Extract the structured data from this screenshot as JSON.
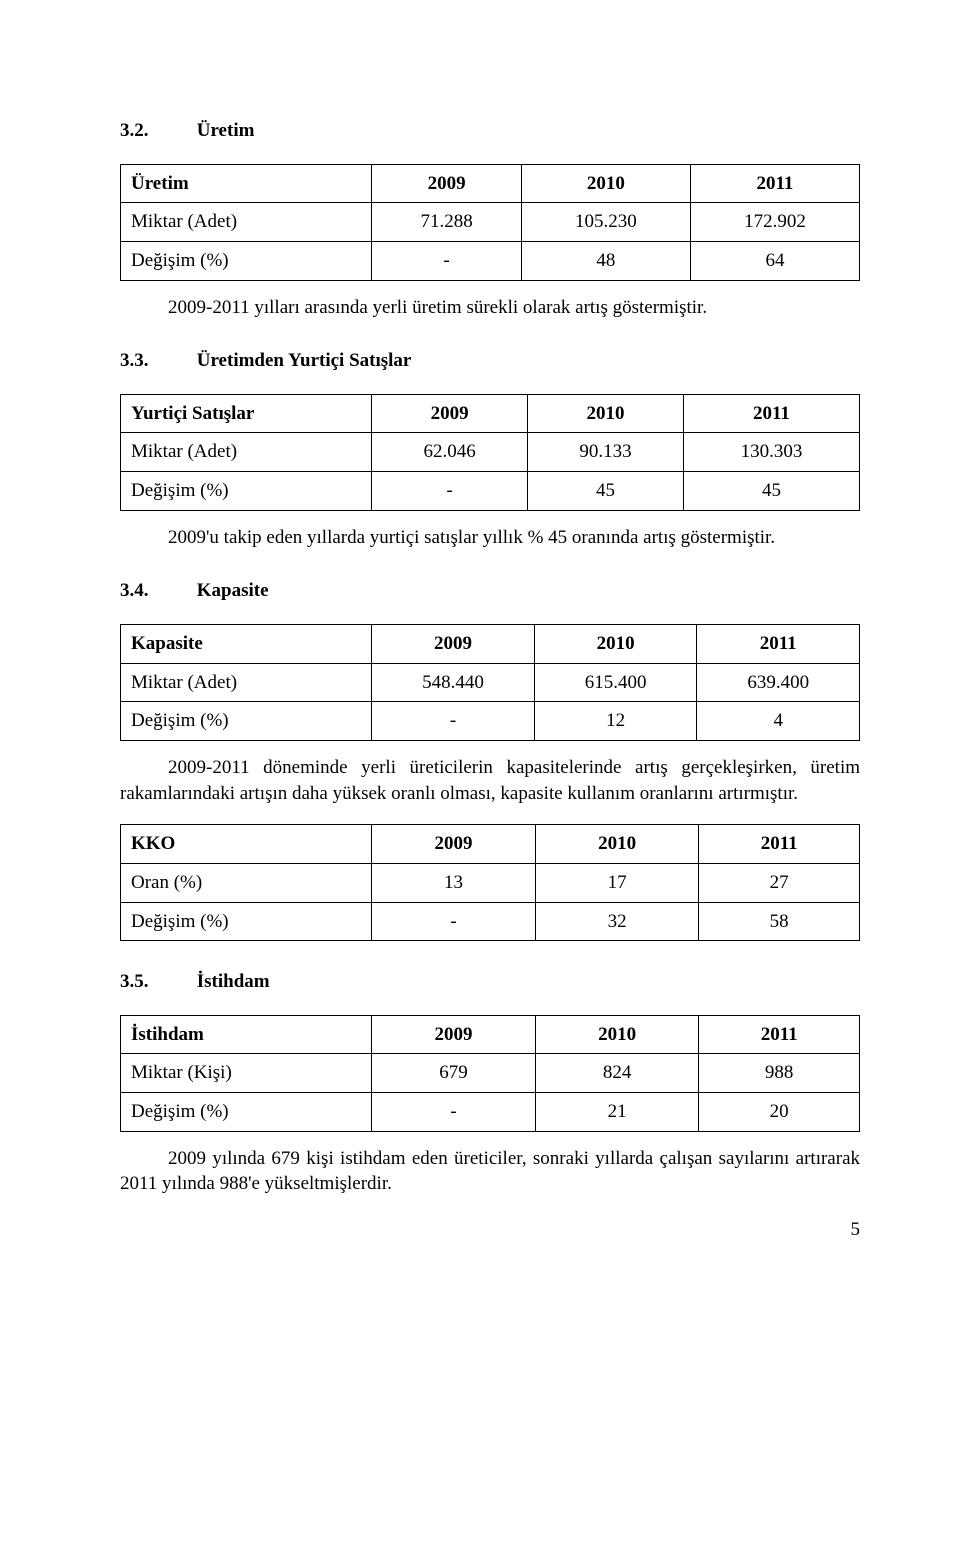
{
  "sections": {
    "s32": {
      "num": "3.2.",
      "title": "Üretim"
    },
    "s33": {
      "num": "3.3.",
      "title": "Üretimden Yurtiçi Satışlar"
    },
    "s34": {
      "num": "3.4.",
      "title": "Kapasite"
    },
    "s35": {
      "num": "3.5.",
      "title": "İstihdam"
    }
  },
  "tables": {
    "uretim": {
      "header": [
        "Üretim",
        "2009",
        "2010",
        "2011"
      ],
      "rows": [
        [
          "Miktar (Adet)",
          "71.288",
          "105.230",
          "172.902"
        ],
        [
          "Değişim (%)",
          "-",
          "48",
          "64"
        ]
      ]
    },
    "yurtici": {
      "header": [
        "Yurtiçi Satışlar",
        "2009",
        "2010",
        "2011"
      ],
      "rows": [
        [
          "Miktar (Adet)",
          "62.046",
          "90.133",
          "130.303"
        ],
        [
          "Değişim (%)",
          "-",
          "45",
          "45"
        ]
      ]
    },
    "kapasite": {
      "header": [
        "Kapasite",
        "2009",
        "2010",
        "2011"
      ],
      "rows": [
        [
          "Miktar (Adet)",
          "548.440",
          "615.400",
          "639.400"
        ],
        [
          "Değişim (%)",
          "-",
          "12",
          "4"
        ]
      ]
    },
    "kko": {
      "header": [
        "KKO",
        "2009",
        "2010",
        "2011"
      ],
      "rows": [
        [
          "Oran (%)",
          "13",
          "17",
          "27"
        ],
        [
          "Değişim (%)",
          "-",
          "32",
          "58"
        ]
      ]
    },
    "istihdam": {
      "header": [
        "İstihdam",
        "2009",
        "2010",
        "2011"
      ],
      "rows": [
        [
          "Miktar (Kişi)",
          "679",
          "824",
          "988"
        ],
        [
          "Değişim (%)",
          "-",
          "21",
          "20"
        ]
      ]
    }
  },
  "paragraphs": {
    "p1": "2009-2011 yılları arasında yerli üretim sürekli olarak artış göstermiştir.",
    "p2": "2009'u takip eden yıllarda yurtiçi satışlar yıllık % 45 oranında artış göstermiştir.",
    "p3": "2009-2011 döneminde yerli üreticilerin kapasitelerinde artış gerçekleşirken, üretim rakamlarındaki artışın daha yüksek oranlı olması, kapasite kullanım oranlarını artırmıştır.",
    "p4": "2009 yılında 679 kişi istihdam eden üreticiler, sonraki yıllarda çalışan sayılarını artırarak 2011 yılında 988'e yükseltmişlerdir."
  },
  "pagenum": "5"
}
